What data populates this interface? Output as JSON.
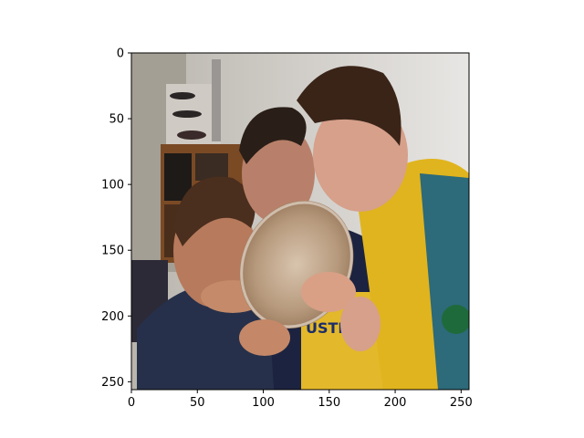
{
  "image": {
    "description_icon": "photo-image",
    "x_ticks": [
      "0",
      "50",
      "100",
      "150",
      "200",
      "250"
    ],
    "y_ticks": [
      "0",
      "50",
      "100",
      "150",
      "200",
      "250"
    ],
    "xlim": [
      0,
      256
    ],
    "ylim": [
      256,
      0
    ]
  },
  "colors": {
    "axes": "#000000",
    "background": "#ffffff"
  },
  "jersey_text": "USTRA"
}
